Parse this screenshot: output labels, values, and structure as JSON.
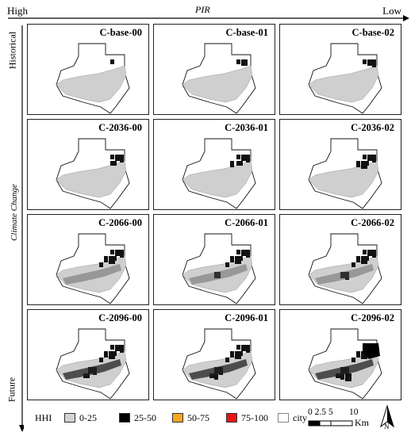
{
  "header": {
    "high": "High",
    "low": "Low",
    "pir": "PIR"
  },
  "side": {
    "historical": "Historical",
    "climate": "Climate Change",
    "future": "Future"
  },
  "panels": [
    "C-base-00",
    "C-base-01",
    "C-base-02",
    "C-2036-00",
    "C-2036-01",
    "C-2036-02",
    "C-2066-00",
    "C-2066-01",
    "C-2066-02",
    "C-2096-00",
    "C-2096-01",
    "C-2096-02"
  ],
  "legend": {
    "title": "HHI",
    "items": [
      {
        "label": "0-25",
        "color": "#d3d3d3"
      },
      {
        "label": "25-50",
        "color": "#000000"
      },
      {
        "label": "50-75",
        "color": "#f5a623"
      },
      {
        "label": "75-100",
        "color": "#e8141a"
      },
      {
        "label": "city",
        "color": "#ffffff"
      }
    ]
  },
  "scale": {
    "ticks": "0 2.5 5",
    "ten": "10",
    "unit": "Km",
    "north": "N"
  }
}
